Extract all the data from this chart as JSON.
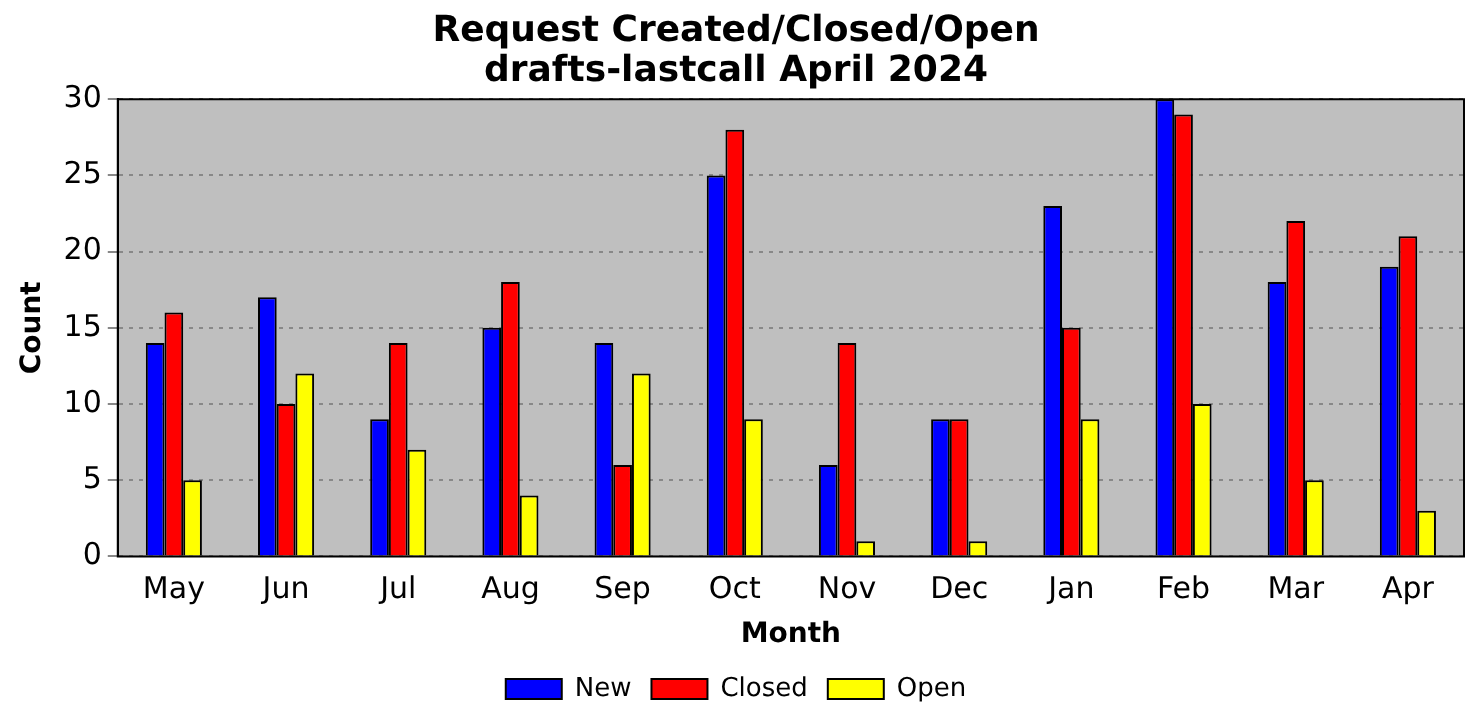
{
  "chart_data": {
    "type": "bar",
    "title": "Request Created/Closed/Open\ndrafts-lastcall April 2024",
    "xlabel": "Month",
    "ylabel": "Count",
    "categories": [
      "May",
      "Jun",
      "Jul",
      "Aug",
      "Sep",
      "Oct",
      "Nov",
      "Dec",
      "Jan",
      "Feb",
      "Mar",
      "Apr"
    ],
    "series": [
      {
        "name": "New",
        "color": "#0000ff",
        "values": [
          14,
          17,
          9,
          15,
          14,
          25,
          6,
          9,
          23,
          30,
          18,
          19
        ]
      },
      {
        "name": "Closed",
        "color": "#ff0000",
        "values": [
          16,
          10,
          14,
          18,
          6,
          28,
          14,
          9,
          15,
          29,
          22,
          21
        ]
      },
      {
        "name": "Open",
        "color": "#ffff00",
        "values": [
          5,
          12,
          7,
          4,
          12,
          9,
          1,
          1,
          9,
          10,
          5,
          3
        ]
      }
    ],
    "ylim": [
      0,
      30
    ],
    "yticks": [
      0,
      5,
      10,
      15,
      20,
      25,
      30
    ],
    "grid": "y",
    "legend": "bottom"
  }
}
